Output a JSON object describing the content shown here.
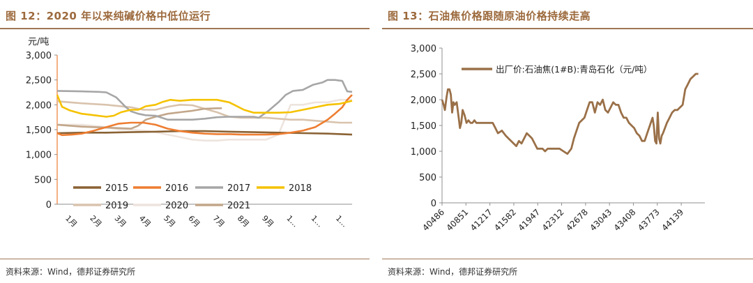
{
  "chart_data": [
    {
      "type": "line",
      "title": "图 12：2020 年以来纯碱价格中低位运行",
      "source": "资料来源：Wind，德邦证券研究所",
      "ylabel": "元/吨",
      "ylim": [
        0,
        3000
      ],
      "yticks": [
        "0",
        "500",
        "1,000",
        "1,500",
        "2,000",
        "2,500",
        "3,000"
      ],
      "x_tick_labels": [
        "1月",
        "2月",
        "3月",
        "4月",
        "5月",
        "6月",
        "7月",
        "8月",
        "9月",
        "1…",
        "1…",
        "1…"
      ],
      "xlim": [
        0,
        12
      ],
      "grid": false,
      "legend_position": "bottom-inside",
      "series": [
        {
          "name": "2015",
          "color": "#8a6234",
          "x": [
            0,
            1,
            2,
            3,
            4,
            5,
            6,
            7,
            8,
            9,
            10,
            11,
            12
          ],
          "y": [
            1430,
            1440,
            1440,
            1450,
            1460,
            1470,
            1470,
            1460,
            1450,
            1440,
            1430,
            1420,
            1400
          ]
        },
        {
          "name": "2016",
          "color": "#ee7d31",
          "x": [
            0,
            0.2,
            0.6,
            1,
            1.5,
            2,
            2.5,
            3,
            3.5,
            4,
            4.5,
            5,
            5.5,
            6,
            6.5,
            7,
            7.5,
            8,
            8.5,
            9,
            9.5,
            10,
            10.5,
            11,
            11.3,
            11.6,
            11.8,
            12
          ],
          "y": [
            1430,
            1390,
            1400,
            1420,
            1480,
            1550,
            1620,
            1640,
            1640,
            1600,
            1520,
            1470,
            1440,
            1420,
            1410,
            1410,
            1400,
            1400,
            1400,
            1410,
            1440,
            1480,
            1550,
            1700,
            1820,
            1950,
            2100,
            2200
          ]
        },
        {
          "name": "2017",
          "color": "#a6a6a6",
          "x": [
            0,
            1,
            1.7,
            2,
            2.4,
            2.8,
            3,
            3.3,
            3.6,
            4,
            4.5,
            5,
            5.5,
            6,
            6.5,
            7,
            7.5,
            8,
            8.2,
            8.6,
            9,
            9.3,
            9.6,
            10,
            10.4,
            10.8,
            11,
            11.3,
            11.6,
            11.8,
            12
          ],
          "y": [
            2280,
            2270,
            2260,
            2250,
            2150,
            1950,
            1870,
            1820,
            1790,
            1780,
            1700,
            1700,
            1700,
            1720,
            1750,
            1760,
            1760,
            1760,
            1740,
            1880,
            2050,
            2200,
            2280,
            2300,
            2400,
            2450,
            2500,
            2500,
            2480,
            2270,
            2260
          ]
        },
        {
          "name": "2018",
          "color": "#f5c200",
          "x": [
            0,
            0.2,
            0.5,
            1,
            1.5,
            2,
            2.3,
            2.6,
            3,
            3.3,
            3.6,
            4,
            4.3,
            4.6,
            5,
            5.5,
            6,
            6.5,
            7,
            7.2,
            7.6,
            8,
            8.5,
            9,
            9.5,
            10,
            10.5,
            11,
            11.5,
            12
          ],
          "y": [
            2200,
            1960,
            1890,
            1820,
            1790,
            1760,
            1780,
            1850,
            1900,
            1900,
            1970,
            2000,
            2060,
            2100,
            2080,
            2100,
            2100,
            2100,
            2050,
            2000,
            1900,
            1840,
            1840,
            1840,
            1850,
            1900,
            1950,
            2000,
            2020,
            2080
          ]
        },
        {
          "name": "2019",
          "color": "#d9c3ad",
          "x": [
            0,
            1,
            2,
            3,
            3.5,
            4,
            4.5,
            5,
            5.5,
            6,
            6.5,
            7,
            7.5,
            8,
            8.5,
            9,
            9.5,
            10,
            10.5,
            11,
            11.5,
            12
          ],
          "y": [
            2070,
            2030,
            2000,
            1950,
            1900,
            1900,
            1960,
            2000,
            1990,
            1920,
            1850,
            1760,
            1740,
            1740,
            1740,
            1720,
            1700,
            1700,
            1680,
            1660,
            1640,
            1640
          ]
        },
        {
          "name": "2020",
          "color": "#eee4de",
          "x": [
            0,
            1,
            2,
            2.5,
            3,
            3.5,
            4,
            4.5,
            5,
            5.5,
            6,
            6.5,
            7,
            7.5,
            8,
            8.5,
            9,
            9.5,
            10,
            10.5,
            11,
            11.5,
            12
          ],
          "y": [
            1600,
            1600,
            1550,
            1500,
            1500,
            1480,
            1450,
            1400,
            1350,
            1300,
            1280,
            1280,
            1300,
            1300,
            1300,
            1300,
            1400,
            2000,
            2000,
            2050,
            2050,
            2100,
            2100
          ]
        },
        {
          "name": "2021",
          "color": "#c2a68a",
          "x": [
            0,
            1,
            2,
            3,
            3.3,
            3.6,
            4,
            4.5,
            5,
            5.5,
            6,
            6.5,
            6.7
          ],
          "y": [
            1600,
            1560,
            1540,
            1520,
            1580,
            1700,
            1760,
            1820,
            1850,
            1880,
            1920,
            1930,
            1930
          ]
        }
      ]
    },
    {
      "type": "line",
      "title": "图 13：石油焦价格跟随原油价格持续走高",
      "source": "资料来源：Wind，德邦证券研究所",
      "ylim": [
        0,
        3000
      ],
      "yticks": [
        "0",
        "500",
        "1,000",
        "1,500",
        "2,000",
        "2,500",
        "3,000"
      ],
      "xticks": [
        "40486",
        "40851",
        "41217",
        "41582",
        "41947",
        "42312",
        "42678",
        "43043",
        "43408",
        "43773",
        "44139"
      ],
      "xlim": [
        40486,
        44500
      ],
      "grid": false,
      "legend_position": "top-left",
      "series": [
        {
          "name": "出厂价:石油焦(1#B):青岛石化（元/吨）",
          "color": "#9a7048",
          "x": [
            40486,
            40510,
            40530,
            40555,
            40575,
            40600,
            40620,
            40640,
            40660,
            40680,
            40710,
            40740,
            40760,
            40780,
            40800,
            40830,
            40860,
            40890,
            40920,
            40950,
            40980,
            41010,
            41050,
            41100,
            41150,
            41200,
            41260,
            41300,
            41340,
            41400,
            41460,
            41500,
            41540,
            41580,
            41620,
            41660,
            41700,
            41740,
            41780,
            41820,
            41860,
            41900,
            41940,
            41980,
            42020,
            42060,
            42100,
            42140,
            42180,
            42220,
            42280,
            42340,
            42400,
            42460,
            42500,
            42540,
            42580,
            42620,
            42660,
            42700,
            42740,
            42780,
            42820,
            42860,
            42900,
            42940,
            42980,
            43020,
            43060,
            43100,
            43140,
            43180,
            43220,
            43260,
            43300,
            43340,
            43380,
            43420,
            43460,
            43500,
            43540,
            43580,
            43620,
            43660,
            43700,
            43720,
            43740,
            43760,
            43780,
            43800,
            43820,
            43840,
            43860,
            43890,
            43920,
            43960,
            44000,
            44040,
            44080,
            44120,
            44160,
            44200,
            44240,
            44280,
            44320,
            44360,
            44400
          ],
          "y": [
            2000,
            1900,
            1800,
            2050,
            2200,
            2200,
            2100,
            1750,
            1950,
            1900,
            1950,
            1650,
            1450,
            1550,
            1800,
            1700,
            1550,
            1600,
            1550,
            1550,
            1600,
            1550,
            1550,
            1550,
            1550,
            1550,
            1550,
            1450,
            1350,
            1400,
            1300,
            1250,
            1200,
            1150,
            1100,
            1200,
            1150,
            1250,
            1350,
            1300,
            1250,
            1150,
            1050,
            1050,
            1050,
            1000,
            1050,
            1050,
            1050,
            1050,
            1050,
            1000,
            950,
            1050,
            1250,
            1400,
            1550,
            1600,
            1650,
            1800,
            1950,
            1950,
            1750,
            1950,
            1900,
            2000,
            1800,
            1750,
            1850,
            1950,
            1900,
            1900,
            1750,
            1650,
            1650,
            1550,
            1500,
            1450,
            1350,
            1300,
            1200,
            1200,
            1350,
            1500,
            1650,
            1500,
            1200,
            1150,
            1750,
            1250,
            1150,
            1300,
            1350,
            1450,
            1550,
            1650,
            1750,
            1800,
            1800,
            1850,
            1900,
            2200,
            2300,
            2400,
            2450,
            2500,
            2500
          ]
        }
      ]
    }
  ]
}
